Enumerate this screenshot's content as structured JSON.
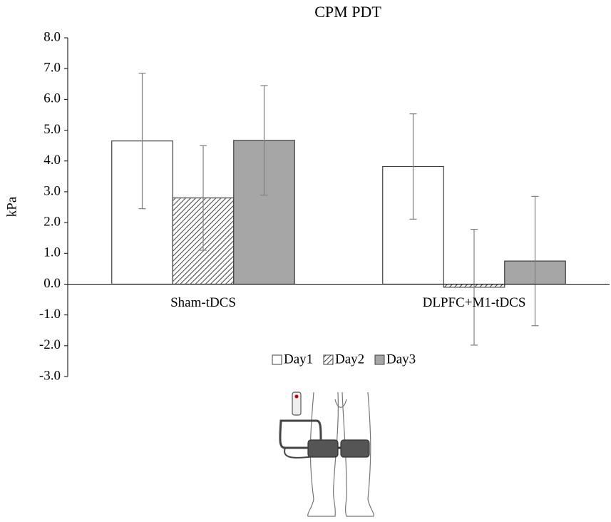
{
  "chart_data": {
    "type": "bar",
    "title": "CPM PDT",
    "y_label": "kPa",
    "categories": [
      "Sham-tDCS",
      "DLPFC+M1-tDCS"
    ],
    "series": [
      {
        "name": "Day1",
        "color": "#ffffff",
        "values": [
          4.65,
          3.82
        ],
        "errors": [
          2.2,
          1.71
        ]
      },
      {
        "name": "Day2",
        "color": "#404040",
        "pattern": "diagonal",
        "values": [
          2.8,
          -0.1
        ],
        "errors": [
          1.7,
          1.88
        ]
      },
      {
        "name": "Day3",
        "color": "#a6a6a6",
        "values": [
          4.67,
          0.75
        ],
        "errors": [
          1.78,
          2.1
        ]
      }
    ],
    "ylim": [
      -3,
      8
    ],
    "yticks": [
      {
        "value": -3,
        "label": "-3.0"
      },
      {
        "value": -2,
        "label": "-2.0"
      },
      {
        "value": -1,
        "label": "-1.0"
      },
      {
        "value": 0,
        "label": "0.0"
      },
      {
        "value": 1,
        "label": "1.0"
      },
      {
        "value": 2,
        "label": "2.0"
      },
      {
        "value": 3,
        "label": "3.0"
      },
      {
        "value": 4,
        "label": "4.0"
      },
      {
        "value": 5,
        "label": "5.0"
      },
      {
        "value": 6,
        "label": "6.0"
      },
      {
        "value": 7,
        "label": "7.0"
      },
      {
        "value": 8,
        "label": "8.0"
      }
    ],
    "legend": "bottom",
    "grid": false
  }
}
